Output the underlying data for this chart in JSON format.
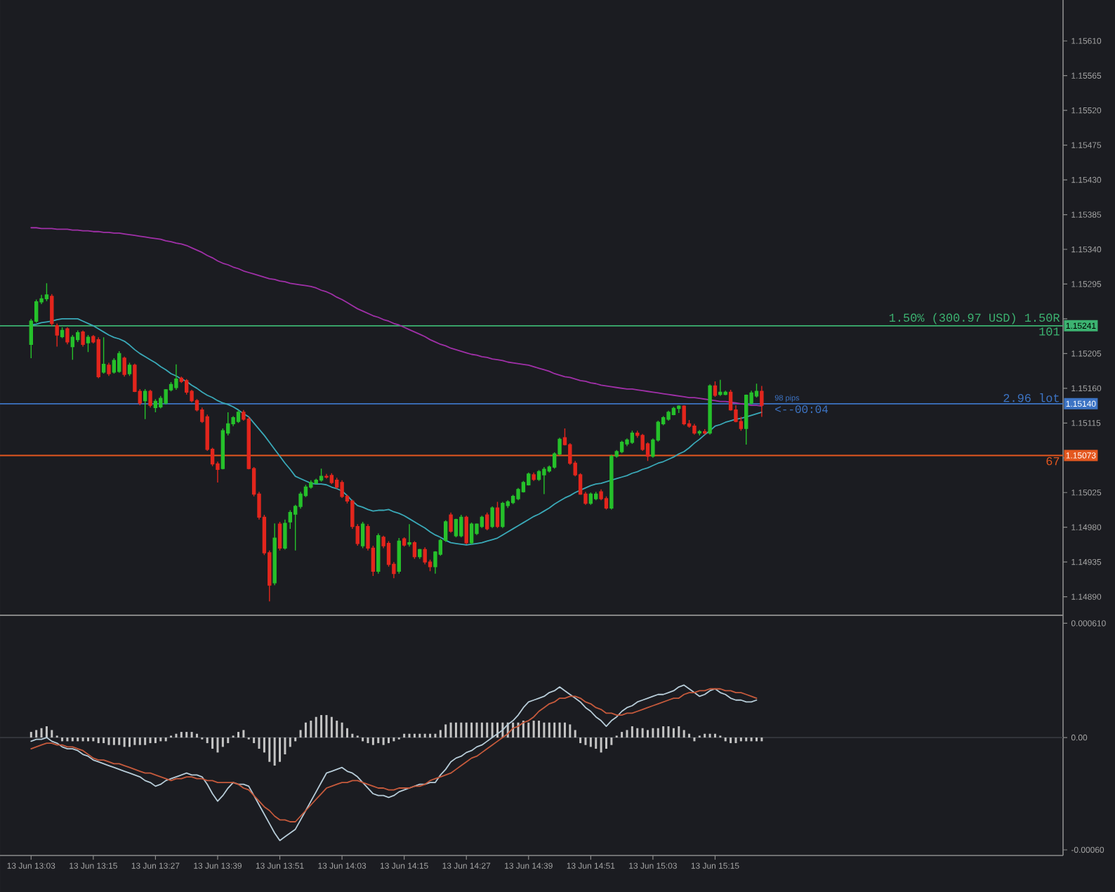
{
  "chart_data": [
    {
      "type": "candlestick",
      "categories": [
        null,
        null,
        null,
        null,
        null,
        null,
        null,
        null,
        null,
        null,
        null,
        null,
        null,
        null,
        null,
        null,
        null,
        null,
        null,
        null,
        null,
        null,
        null,
        null,
        null,
        null,
        null,
        null,
        null,
        null,
        null,
        null,
        null,
        null,
        null,
        null,
        null,
        null,
        null,
        null,
        null,
        null,
        null,
        null,
        null,
        null,
        null,
        null,
        null,
        null,
        null,
        null,
        null,
        null,
        null,
        null,
        null,
        null,
        null,
        null,
        null,
        null,
        null,
        null,
        null,
        null,
        null,
        null,
        null,
        null,
        null,
        null,
        null,
        null,
        null,
        null,
        null,
        null,
        null,
        null,
        null,
        null,
        null,
        null,
        null,
        null,
        null,
        null,
        null,
        null,
        null,
        null,
        null,
        null,
        null,
        null,
        null,
        null,
        null,
        null,
        null,
        null,
        null,
        null,
        null,
        null,
        null,
        null,
        null,
        null,
        null,
        null,
        null,
        null,
        null,
        null,
        null,
        null,
        null,
        null,
        null,
        null,
        null,
        null,
        null,
        null,
        null,
        null,
        null,
        null,
        null,
        null,
        null,
        null,
        null,
        null,
        null,
        null,
        null,
        null,
        null,
        null
      ],
      "tick_labels": "y",
      "ylim": [
        1.14866,
        1.15663
      ],
      "yticks": [
        {
          "value": 1.1489,
          "label": "1.14890"
        },
        {
          "value": 1.14935,
          "label": "1.14935"
        },
        {
          "value": 1.1498,
          "label": "1.14980"
        },
        {
          "value": 1.15025,
          "label": "1.15025"
        },
        {
          "value": 1.1507,
          "label": null
        },
        {
          "value": 1.15115,
          "label": "1.15115"
        },
        {
          "value": 1.1516,
          "label": "1.15160"
        },
        {
          "value": 1.15205,
          "label": "1.15205"
        },
        {
          "value": 1.1525,
          "label": null
        },
        {
          "value": 1.15295,
          "label": "1.15295"
        },
        {
          "value": 1.1534,
          "label": "1.15340"
        },
        {
          "value": 1.15385,
          "label": "1.15385"
        },
        {
          "value": 1.1543,
          "label": "1.15430"
        },
        {
          "value": 1.15475,
          "label": "1.15475"
        },
        {
          "value": 1.1552,
          "label": "1.15520"
        },
        {
          "value": 1.15565,
          "label": "1.15565"
        },
        {
          "value": 1.1561,
          "label": "1.15610"
        }
      ],
      "ohlc": [
        [
          1.15217,
          1.1525,
          1.15199,
          1.15247
        ],
        [
          1.15247,
          1.15275,
          1.15245,
          1.15272
        ],
        [
          1.15272,
          1.15281,
          1.15269,
          1.15276
        ],
        [
          1.15276,
          1.15296,
          1.15273,
          1.15281
        ],
        [
          1.15279,
          1.15282,
          1.15241,
          1.15244
        ],
        [
          1.15241,
          1.15244,
          1.15214,
          1.15229
        ],
        [
          1.15227,
          1.15239,
          1.15225,
          1.15235
        ],
        [
          1.15237,
          1.15239,
          1.15217,
          1.1522
        ],
        [
          1.15214,
          1.15229,
          1.15197,
          1.15226
        ],
        [
          1.15223,
          1.15235,
          1.1522,
          1.15232
        ],
        [
          1.15233,
          1.15235,
          1.15214,
          1.15217
        ],
        [
          1.15219,
          1.15229,
          1.15207,
          1.15226
        ],
        [
          1.15227,
          1.15229,
          1.15218,
          1.1522
        ],
        [
          1.15223,
          1.15226,
          1.15173,
          1.15175
        ],
        [
          1.15181,
          1.15226,
          1.15179,
          1.15191
        ],
        [
          1.1519,
          1.15193,
          1.15176,
          1.15179
        ],
        [
          1.15181,
          1.15199,
          1.15179,
          1.15196
        ],
        [
          1.15182,
          1.15208,
          1.1518,
          1.15205
        ],
        [
          1.15199,
          1.15201,
          1.15175,
          1.15178
        ],
        [
          1.15179,
          1.15193,
          1.15176,
          1.1519
        ],
        [
          1.1519,
          1.15192,
          1.15155,
          1.15156
        ],
        [
          1.15156,
          1.15159,
          1.15138,
          1.15141
        ],
        [
          1.15144,
          1.15159,
          1.1512,
          1.15156
        ],
        [
          1.15156,
          1.15158,
          1.15135,
          1.15138
        ],
        [
          1.15135,
          1.15146,
          1.15129,
          1.15143
        ],
        [
          1.15136,
          1.1515,
          1.15134,
          1.15147
        ],
        [
          1.15141,
          1.15159,
          1.15139,
          1.15158
        ],
        [
          1.15158,
          1.15168,
          1.15156,
          1.15165
        ],
        [
          1.15161,
          1.15191,
          1.15158,
          1.15172
        ],
        [
          1.15173,
          1.15175,
          1.15167,
          1.15169
        ],
        [
          1.1517,
          1.15172,
          1.15152,
          1.15155
        ],
        [
          1.15156,
          1.15158,
          1.15142,
          1.15144
        ],
        [
          1.15144,
          1.15146,
          1.1513,
          1.15132
        ],
        [
          1.15132,
          1.15135,
          1.15115,
          1.15117
        ],
        [
          1.15123,
          1.15126,
          1.15079,
          1.15081
        ],
        [
          1.15081,
          1.15083,
          1.15059,
          1.15062
        ],
        [
          1.15062,
          1.15065,
          1.15038,
          1.15055
        ],
        [
          1.15056,
          1.15108,
          1.15055,
          1.15105
        ],
        [
          1.15102,
          1.15129,
          1.15099,
          1.15114
        ],
        [
          1.15114,
          1.15124,
          1.15111,
          1.15122
        ],
        [
          1.15117,
          1.15132,
          1.15115,
          1.15129
        ],
        [
          1.15129,
          1.15132,
          1.15118,
          1.1512
        ],
        [
          1.1512,
          1.15123,
          1.15055,
          1.15056
        ],
        [
          1.15056,
          1.15058,
          1.1502,
          1.15023
        ],
        [
          1.15023,
          1.15026,
          1.1499,
          1.14993
        ],
        [
          1.14993,
          1.14996,
          1.14944,
          1.14947
        ],
        [
          1.14947,
          1.1495,
          1.14884,
          1.14905
        ],
        [
          1.14908,
          1.14985,
          1.14905,
          1.14966
        ],
        [
          1.14984,
          1.14987,
          1.1495,
          1.14953
        ],
        [
          1.14953,
          1.1499,
          1.14951,
          1.14985
        ],
        [
          1.14987,
          1.15002,
          1.14978,
          1.14999
        ],
        [
          1.14997,
          1.15009,
          1.1495,
          1.15007
        ],
        [
          1.15007,
          1.15026,
          1.15004,
          1.15023
        ],
        [
          1.15021,
          1.15035,
          1.15019,
          1.15032
        ],
        [
          1.15032,
          1.15041,
          1.1503,
          1.15038
        ],
        [
          1.15037,
          1.15043,
          1.15036,
          1.15041
        ],
        [
          1.15041,
          1.15056,
          1.15039,
          1.15046
        ],
        [
          1.15046,
          1.15049,
          1.15043,
          1.15045
        ],
        [
          1.15047,
          1.1505,
          1.15036,
          1.15038
        ],
        [
          1.15041,
          1.15044,
          1.1503,
          1.15032
        ],
        [
          1.15038,
          1.15041,
          1.15018,
          1.1502
        ],
        [
          1.1502,
          1.15022,
          1.15011,
          1.15014
        ],
        [
          1.15014,
          1.15016,
          1.14978,
          1.14981
        ],
        [
          1.14981,
          1.14984,
          1.14956,
          1.14959
        ],
        [
          1.14956,
          1.14987,
          1.14953,
          1.14984
        ],
        [
          1.14981,
          1.14984,
          1.1495,
          1.14953
        ],
        [
          1.14953,
          1.14956,
          1.14917,
          1.14923
        ],
        [
          1.14923,
          1.14972,
          1.1492,
          1.14969
        ],
        [
          1.14967,
          1.14969,
          1.14953,
          1.14956
        ],
        [
          1.14959,
          1.14962,
          1.14929,
          1.14932
        ],
        [
          1.14932,
          1.14935,
          1.14914,
          1.1492
        ],
        [
          1.14923,
          1.14966,
          1.1492,
          1.14962
        ],
        [
          1.14965,
          1.14967,
          1.14955,
          1.14957
        ],
        [
          1.14958,
          1.14984,
          1.14955,
          1.1496
        ],
        [
          1.1496,
          1.14962,
          1.14939,
          1.14942
        ],
        [
          1.14942,
          1.14952,
          1.14939,
          1.14951
        ],
        [
          1.14951,
          1.14954,
          1.14932,
          1.14935
        ],
        [
          1.14935,
          1.14938,
          1.14923,
          1.14929
        ],
        [
          1.14929,
          1.14949,
          1.1492,
          1.14948
        ],
        [
          1.14945,
          1.14965,
          1.14943,
          1.14963
        ],
        [
          1.14963,
          1.14989,
          1.14961,
          1.14987
        ],
        [
          1.14996,
          1.14999,
          1.14973,
          1.14975
        ],
        [
          1.14969,
          1.14991,
          1.14967,
          1.1499
        ],
        [
          1.14969,
          1.14996,
          1.14967,
          1.14993
        ],
        [
          1.14993,
          1.14995,
          1.14958,
          1.1496
        ],
        [
          1.1496,
          1.14986,
          1.14958,
          1.14984
        ],
        [
          1.14972,
          1.14985,
          1.1497,
          1.14984
        ],
        [
          1.14981,
          1.14995,
          1.14979,
          1.14993
        ],
        [
          1.14996,
          1.14999,
          1.14976,
          1.14978
        ],
        [
          1.14981,
          1.15007,
          1.14979,
          1.15005
        ],
        [
          1.15005,
          1.15013,
          1.14979,
          1.14981
        ],
        [
          1.14981,
          1.15013,
          1.14979,
          1.15011
        ],
        [
          1.15008,
          1.15015,
          1.15005,
          1.15013
        ],
        [
          1.15012,
          1.15022,
          1.1501,
          1.1502
        ],
        [
          1.15017,
          1.15031,
          1.15015,
          1.15029
        ],
        [
          1.15026,
          1.1504,
          1.15025,
          1.15038
        ],
        [
          1.15035,
          1.15051,
          1.15034,
          1.15049
        ],
        [
          1.15048,
          1.15051,
          1.1504,
          1.15042
        ],
        [
          1.15042,
          1.15054,
          1.1504,
          1.15052
        ],
        [
          1.15048,
          1.15058,
          1.15023,
          1.15055
        ],
        [
          1.15053,
          1.1506,
          1.15051,
          1.15058
        ],
        [
          1.15058,
          1.15077,
          1.15056,
          1.15075
        ],
        [
          1.15075,
          1.15096,
          1.15073,
          1.15094
        ],
        [
          1.15096,
          1.15108,
          1.15086,
          1.15087
        ],
        [
          1.15087,
          1.15089,
          1.15061,
          1.15063
        ],
        [
          1.15063,
          1.15066,
          1.15046,
          1.15048
        ],
        [
          1.15048,
          1.1505,
          1.15022,
          1.15023
        ],
        [
          1.15023,
          1.15026,
          1.15009,
          1.15011
        ],
        [
          1.15011,
          1.15025,
          1.15009,
          1.15023
        ],
        [
          1.15017,
          1.15026,
          1.15015,
          1.15023
        ],
        [
          1.15026,
          1.15029,
          1.15015,
          1.15017
        ],
        [
          1.15017,
          1.1502,
          1.15003,
          1.15005
        ],
        [
          1.15005,
          1.15074,
          1.15003,
          1.15072
        ],
        [
          1.15072,
          1.1508,
          1.1507,
          1.15078
        ],
        [
          1.15078,
          1.15092,
          1.15076,
          1.1509
        ],
        [
          1.15088,
          1.15095,
          1.15085,
          1.15093
        ],
        [
          1.1509,
          1.15105,
          1.15088,
          1.15102
        ],
        [
          1.15102,
          1.15105,
          1.15096,
          1.15099
        ],
        [
          1.15099,
          1.15101,
          1.15079,
          1.15081
        ],
        [
          1.15088,
          1.1509,
          1.15066,
          1.15072
        ],
        [
          1.15072,
          1.15095,
          1.1507,
          1.15093
        ],
        [
          1.15093,
          1.15118,
          1.15091,
          1.15116
        ],
        [
          1.15114,
          1.15124,
          1.15112,
          1.15122
        ],
        [
          1.1512,
          1.15131,
          1.15118,
          1.15129
        ],
        [
          1.15126,
          1.15136,
          1.15125,
          1.15134
        ],
        [
          1.15134,
          1.15138,
          1.15128,
          1.15137
        ],
        [
          1.15137,
          1.15138,
          1.15112,
          1.15114
        ],
        [
          1.15114,
          1.15119,
          1.15109,
          1.15111
        ],
        [
          1.15111,
          1.15114,
          1.151,
          1.15102
        ],
        [
          1.15102,
          1.15106,
          1.15099,
          1.15104
        ],
        [
          1.15104,
          1.15107,
          1.151,
          1.15102
        ],
        [
          1.15102,
          1.15165,
          1.151,
          1.15163
        ],
        [
          1.15163,
          1.15169,
          1.15149,
          1.15151
        ],
        [
          1.15152,
          1.15171,
          1.1515,
          1.15155
        ],
        [
          1.15152,
          1.15157,
          1.15151,
          1.15155
        ],
        [
          1.15155,
          1.15158,
          1.15131,
          1.15132
        ],
        [
          1.15132,
          1.15138,
          1.15116,
          1.15117
        ],
        [
          1.15117,
          1.15123,
          1.15105,
          1.15108
        ],
        [
          1.15108,
          1.15152,
          1.15087,
          1.15151
        ],
        [
          1.15141,
          1.15157,
          1.15139,
          1.15154
        ],
        [
          1.1515,
          1.15166,
          1.15148,
          1.15156
        ],
        [
          1.15156,
          1.15163,
          1.15123,
          1.15138
        ]
      ],
      "colors": [
        "#26c12b",
        "#26c12b",
        "#26c12b",
        "#26c12b",
        "#e3261d",
        "#e3261d",
        "#26c12b",
        "#e3261d",
        "#26c12b",
        "#26c12b",
        "#e3261d",
        "#26c12b",
        "#e3261d",
        "#e3261d",
        "#26c12b",
        "#e3261d",
        "#26c12b",
        "#26c12b",
        "#e3261d",
        "#26c12b",
        "#e3261d",
        "#e3261d",
        "#26c12b",
        "#e3261d",
        "#26c12b",
        "#26c12b",
        "#26c12b",
        "#26c12b",
        "#26c12b",
        "#e3261d",
        "#e3261d",
        "#e3261d",
        "#e3261d",
        "#e3261d",
        "#e3261d",
        "#e3261d",
        "#e3261d",
        "#26c12b",
        "#26c12b",
        "#26c12b",
        "#26c12b",
        "#e3261d",
        "#e3261d",
        "#e3261d",
        "#e3261d",
        "#e3261d",
        "#e3261d",
        "#26c12b",
        "#e3261d",
        "#26c12b",
        "#26c12b",
        "#26c12b",
        "#26c12b",
        "#26c12b",
        "#26c12b",
        "#26c12b",
        "#26c12b",
        "#e3261d",
        "#e3261d",
        "#e3261d",
        "#e3261d",
        "#e3261d",
        "#e3261d",
        "#e3261d",
        "#26c12b",
        "#e3261d",
        "#e3261d",
        "#26c12b",
        "#e3261d",
        "#e3261d",
        "#e3261d",
        "#26c12b",
        "#e3261d",
        "#26c12b",
        "#e3261d",
        "#26c12b",
        "#e3261d",
        "#e3261d",
        "#26c12b",
        "#26c12b",
        "#26c12b",
        "#e3261d",
        "#26c12b",
        "#26c12b",
        "#e3261d",
        "#26c12b",
        "#26c12b",
        "#26c12b",
        "#e3261d",
        "#26c12b",
        "#e3261d",
        "#26c12b",
        "#26c12b",
        "#26c12b",
        "#26c12b",
        "#26c12b",
        "#26c12b",
        "#e3261d",
        "#26c12b",
        "#26c12b",
        "#26c12b",
        "#26c12b",
        "#26c12b",
        "#e3261d",
        "#e3261d",
        "#e3261d",
        "#e3261d",
        "#e3261d",
        "#26c12b",
        "#26c12b",
        "#e3261d",
        "#e3261d",
        "#26c12b",
        "#26c12b",
        "#26c12b",
        "#26c12b",
        "#26c12b",
        "#e3261d",
        "#e3261d",
        "#e3261d",
        "#26c12b",
        "#26c12b",
        "#26c12b",
        "#26c12b",
        "#26c12b",
        "#26c12b",
        "#e3261d",
        "#e3261d",
        "#e3261d",
        "#26c12b",
        "#e3261d",
        "#26c12b",
        "#e3261d",
        "#26c12b",
        "#26c12b",
        "#e3261d",
        "#e3261d",
        "#e3261d",
        "#26c12b",
        "#26c12b",
        "#26c12b",
        "#e3261d"
      ],
      "series": [
        {
          "type": "line",
          "color": "#3aa9b8",
          "values": [
            1.15242,
            1.15243,
            1.15245,
            1.15246,
            1.15247,
            1.15249,
            1.1525,
            1.1525,
            1.1525,
            1.1525,
            1.15247,
            1.15244,
            1.15241,
            1.15237,
            1.15233,
            1.15229,
            1.15226,
            1.15224,
            1.15221,
            1.15216,
            1.1521,
            1.15205,
            1.15201,
            1.15197,
            1.15193,
            1.15188,
            1.15184,
            1.15179,
            1.15176,
            1.15172,
            1.15169,
            1.15164,
            1.1516,
            1.15155,
            1.15151,
            1.15148,
            1.15144,
            1.15141,
            1.15139,
            1.15136,
            1.15132,
            1.15127,
            1.15123,
            1.15115,
            1.15107,
            1.15099,
            1.1509,
            1.15081,
            1.15072,
            1.15063,
            1.15055,
            1.15046,
            1.15043,
            1.1504,
            1.15037,
            1.15036,
            1.15036,
            1.15035,
            1.15032,
            1.1503,
            1.15027,
            1.15021,
            1.15014,
            1.15008,
            1.15006,
            1.15003,
            1.15001,
            1.15002,
            1.15002,
            1.15003,
            1.15,
            1.14998,
            1.14995,
            1.14991,
            1.14987,
            1.14983,
            1.14979,
            1.14974,
            1.1497,
            1.14967,
            1.14963,
            1.1496,
            1.14959,
            1.14958,
            1.14957,
            1.14958,
            1.14959,
            1.1496,
            1.14962,
            1.14964,
            1.14966,
            1.1497,
            1.14974,
            1.14978,
            1.14982,
            1.14986,
            1.1499,
            1.14994,
            1.14997,
            1.15001,
            1.15005,
            1.1501,
            1.15014,
            1.15018,
            1.15021,
            1.15025,
            1.15028,
            1.15031,
            1.15034,
            1.15036,
            1.15037,
            1.15039,
            1.15041,
            1.15043,
            1.15045,
            1.15047,
            1.1505,
            1.15052,
            1.15055,
            1.15057,
            1.1506,
            1.15063,
            1.15065,
            1.15068,
            1.15071,
            1.15075,
            1.15078,
            1.15083,
            1.15089,
            1.15094,
            1.151,
            1.15105,
            1.15111,
            1.15113,
            1.15116,
            1.15118,
            1.1512,
            1.15121,
            1.15123,
            1.15125,
            1.15127,
            1.15129
          ]
        },
        {
          "type": "line",
          "color": "#a030a8",
          "values": [
            1.15368,
            1.15368,
            1.15367,
            1.15367,
            1.15367,
            1.15366,
            1.15366,
            1.15366,
            1.15365,
            1.15365,
            1.15364,
            1.15364,
            1.15363,
            1.15363,
            1.15362,
            1.15362,
            1.15361,
            1.15361,
            1.1536,
            1.15359,
            1.15358,
            1.15357,
            1.15356,
            1.15355,
            1.15354,
            1.15353,
            1.15351,
            1.1535,
            1.15348,
            1.15347,
            1.15345,
            1.15342,
            1.15339,
            1.15336,
            1.15332,
            1.15329,
            1.15325,
            1.15322,
            1.1532,
            1.15317,
            1.15315,
            1.15312,
            1.1531,
            1.15308,
            1.15306,
            1.15304,
            1.15302,
            1.15301,
            1.15299,
            1.15298,
            1.15296,
            1.15295,
            1.15294,
            1.15293,
            1.15292,
            1.1529,
            1.15287,
            1.15285,
            1.15282,
            1.15278,
            1.15275,
            1.15271,
            1.15267,
            1.15263,
            1.1526,
            1.15257,
            1.15254,
            1.15252,
            1.15249,
            1.15247,
            1.15244,
            1.15242,
            1.15239,
            1.15236,
            1.15233,
            1.1523,
            1.15227,
            1.15223,
            1.1522,
            1.15217,
            1.15215,
            1.15212,
            1.1521,
            1.15208,
            1.15206,
            1.15204,
            1.15203,
            1.15201,
            1.152,
            1.15198,
            1.15197,
            1.15196,
            1.15194,
            1.15193,
            1.15192,
            1.15191,
            1.1519,
            1.15188,
            1.15186,
            1.15184,
            1.15182,
            1.15179,
            1.15177,
            1.15175,
            1.15174,
            1.15172,
            1.1517,
            1.15169,
            1.15167,
            1.15166,
            1.15164,
            1.15163,
            1.15162,
            1.15161,
            1.1516,
            1.15159,
            1.15159,
            1.15158,
            1.15157,
            1.15156,
            1.15155,
            1.15154,
            1.15153,
            1.15152,
            1.15151,
            1.1515,
            1.15149,
            1.15148,
            1.15148,
            1.15147,
            1.15146,
            1.15145,
            1.15144,
            1.15143,
            1.15143,
            1.15142,
            1.15141,
            1.1514,
            1.15139,
            1.15138,
            1.15138,
            1.15137
          ]
        }
      ],
      "ref_lines": [
        {
          "axis": "y",
          "value": 1.15241,
          "label": "1.15241",
          "color": "#3cb371"
        },
        {
          "axis": "y",
          "value": 1.1514,
          "label": "1.15140",
          "color": "#3d74c4"
        },
        {
          "axis": "y",
          "value": 1.15073,
          "label": "1.15073",
          "color": "#e4571f"
        }
      ],
      "annotations": [
        "1.50% (300.97 USD) 1.50R",
        "101",
        "2.96 lot",
        "67",
        "98 pips",
        "<--00:04"
      ]
    },
    {
      "type": "bar",
      "categories": [
        "13 Jun 13:03",
        null,
        null,
        null,
        null,
        null,
        null,
        null,
        null,
        null,
        null,
        null,
        "13 Jun 13:15",
        null,
        null,
        null,
        null,
        null,
        null,
        null,
        null,
        null,
        null,
        null,
        "13 Jun 13:27",
        null,
        null,
        null,
        null,
        null,
        null,
        null,
        null,
        null,
        null,
        null,
        "13 Jun 13:39",
        null,
        null,
        null,
        null,
        null,
        null,
        null,
        null,
        null,
        null,
        null,
        "13 Jun 13:51",
        null,
        null,
        null,
        null,
        null,
        null,
        null,
        null,
        null,
        null,
        null,
        "13 Jun 14:03",
        null,
        null,
        null,
        null,
        null,
        null,
        null,
        null,
        null,
        null,
        null,
        "13 Jun 14:15",
        null,
        null,
        null,
        null,
        null,
        null,
        null,
        null,
        null,
        null,
        null,
        "13 Jun 14:27",
        null,
        null,
        null,
        null,
        null,
        null,
        null,
        null,
        null,
        null,
        null,
        "13 Jun 14:39",
        null,
        null,
        null,
        null,
        null,
        null,
        null,
        null,
        null,
        null,
        null,
        "13 Jun 14:51",
        null,
        null,
        null,
        null,
        null,
        null,
        null,
        null,
        null,
        null,
        null,
        "13 Jun 15:03",
        null,
        null,
        null,
        null,
        null,
        null,
        null,
        null,
        null,
        null,
        null,
        "13 Jun 15:15",
        null,
        null,
        null,
        null,
        null,
        null,
        null,
        null,
        null
      ],
      "ylim": [
        -0.00063,
        0.000653
      ],
      "yticks": [
        {
          "value": 0.00061,
          "label": "0.000610"
        },
        {
          "value": 0,
          "label": "0.00"
        },
        {
          "value": -0.0006,
          "label": "-0.00060"
        }
      ],
      "ref_lines": [
        {
          "axis": "y",
          "value": 0,
          "color": "#36383e"
        }
      ],
      "series": [
        {
          "type": "bar",
          "color": "#c4c4c4",
          "values": [
            3e-05,
            4e-05,
            5e-05,
            6e-05,
            4e-05,
            1e-05,
            -2e-05,
            -2e-05,
            -2e-05,
            -2e-05,
            -2e-05,
            -2e-05,
            -2e-05,
            -3e-05,
            -3e-05,
            -4e-05,
            -4e-05,
            -4e-05,
            -5e-05,
            -5e-05,
            -4e-05,
            -4e-05,
            -4e-05,
            -3e-05,
            -3e-05,
            -2e-05,
            -2e-05,
            1e-05,
            2e-05,
            3e-05,
            3e-05,
            3e-05,
            2e-05,
            -1e-05,
            -3e-05,
            -6e-05,
            -8e-05,
            -5e-05,
            -3e-05,
            1e-05,
            3e-05,
            4e-05,
            -1e-05,
            -3e-05,
            -6e-05,
            -8e-05,
            -0.00013,
            -0.00015,
            -0.00013,
            -9e-05,
            -5e-05,
            -2e-05,
            4e-05,
            8e-05,
            9e-05,
            0.00011,
            0.00012,
            0.00012,
            0.00011,
            9e-05,
            8e-05,
            5e-05,
            2e-05,
            1e-05,
            -2e-05,
            -3e-05,
            -4e-05,
            -3e-05,
            -4e-05,
            -3e-05,
            -2e-05,
            -1e-05,
            2e-05,
            2e-05,
            2e-05,
            2e-05,
            2e-05,
            2e-05,
            2e-05,
            4e-05,
            7e-05,
            8e-05,
            8e-05,
            8e-05,
            8e-05,
            8e-05,
            8e-05,
            8e-05,
            8e-05,
            8e-05,
            8e-05,
            8e-05,
            8e-05,
            8e-05,
            8e-05,
            9e-05,
            8e-05,
            9e-05,
            9e-05,
            8e-05,
            8e-05,
            8e-05,
            8e-05,
            8e-05,
            7e-05,
            4e-05,
            -3e-05,
            -4e-05,
            -5e-05,
            -6e-05,
            -8e-05,
            -6e-05,
            -4e-05,
            1e-05,
            3e-05,
            4e-05,
            6e-05,
            5e-05,
            5e-05,
            4e-05,
            5e-05,
            5e-05,
            6e-05,
            6e-05,
            5e-05,
            6e-05,
            4e-05,
            2e-05,
            -2e-05,
            1e-05,
            2e-05,
            2e-05,
            2e-05,
            1e-05,
            -2e-05,
            -3e-05,
            -3e-05,
            -2e-05,
            -2e-05,
            -2e-05,
            -2e-05,
            -2e-05
          ]
        },
        {
          "type": "line",
          "color": "#b7ccd8",
          "values": [
            -2e-05,
            -1e-05,
            -1e-05,
            0,
            -2e-05,
            -3e-05,
            -5e-05,
            -6e-05,
            -6e-05,
            -7e-05,
            -9e-05,
            -0.0001,
            -0.00012,
            -0.00013,
            -0.00014,
            -0.00015,
            -0.00016,
            -0.00017,
            -0.00018,
            -0.00019,
            -0.0002,
            -0.00021,
            -0.00023,
            -0.00024,
            -0.00026,
            -0.00025,
            -0.00023,
            -0.00022,
            -0.00021,
            -0.0002,
            -0.00019,
            -0.0002,
            -0.0002,
            -0.00021,
            -0.00025,
            -0.0003,
            -0.00034,
            -0.00031,
            -0.00027,
            -0.00024,
            -0.00025,
            -0.00025,
            -0.00026,
            -0.00031,
            -0.00036,
            -0.00041,
            -0.00046,
            -0.00051,
            -0.00055,
            -0.00053,
            -0.00051,
            -0.00049,
            -0.00044,
            -0.00039,
            -0.00034,
            -0.00029,
            -0.00024,
            -0.00019,
            -0.00018,
            -0.00017,
            -0.00016,
            -0.00018,
            -0.00019,
            -0.00021,
            -0.00024,
            -0.00027,
            -0.0003,
            -0.00031,
            -0.00031,
            -0.00032,
            -0.00031,
            -0.00029,
            -0.00028,
            -0.00027,
            -0.00026,
            -0.00025,
            -0.00025,
            -0.00024,
            -0.00024,
            -0.0002,
            -0.00017,
            -0.00013,
            -0.00011,
            -0.0001,
            -8e-05,
            -7e-05,
            -5e-05,
            -4e-05,
            -2e-05,
            0,
            2e-05,
            4e-05,
            7e-05,
            9e-05,
            0.00012,
            0.00016,
            0.00019,
            0.0002,
            0.00021,
            0.00022,
            0.00024,
            0.00025,
            0.00027,
            0.00025,
            0.00023,
            0.00021,
            0.00019,
            0.00016,
            0.00014,
            0.00011,
            9e-05,
            6e-05,
            9e-05,
            0.00011,
            0.00014,
            0.00016,
            0.00017,
            0.00019,
            0.0002,
            0.00021,
            0.00022,
            0.00023,
            0.00023,
            0.00024,
            0.00025,
            0.00027,
            0.00028,
            0.00026,
            0.00024,
            0.00022,
            0.00023,
            0.00025,
            0.00026,
            0.00024,
            0.00023,
            0.00021,
            0.0002,
            0.0002,
            0.00019,
            0.00019,
            0.0002,
            null
          ]
        },
        {
          "type": "line",
          "color": "#c65a3c",
          "values": [
            -6e-05,
            -5e-05,
            -4e-05,
            -3e-05,
            -3e-05,
            -4e-05,
            -4e-05,
            -5e-05,
            -5e-05,
            -6e-05,
            -7e-05,
            -9e-05,
            -0.00011,
            -0.00012,
            -0.00012,
            -0.00013,
            -0.00014,
            -0.00014,
            -0.00015,
            -0.00016,
            -0.00017,
            -0.00018,
            -0.00019,
            -0.00019,
            -0.0002,
            -0.00021,
            -0.00022,
            -0.00023,
            -0.00022,
            -0.00022,
            -0.00021,
            -0.00021,
            -0.00022,
            -0.00022,
            -0.00023,
            -0.00023,
            -0.00024,
            -0.00024,
            -0.00024,
            -0.00024,
            -0.00025,
            -0.00027,
            -0.00028,
            -0.00031,
            -0.00034,
            -0.00037,
            -0.00039,
            -0.00042,
            -0.00044,
            -0.00044,
            -0.00045,
            -0.00045,
            -0.00042,
            -0.00039,
            -0.00036,
            -0.00033,
            -0.0003,
            -0.00027,
            -0.00026,
            -0.00025,
            -0.00024,
            -0.00024,
            -0.00023,
            -0.00023,
            -0.00024,
            -0.00025,
            -0.00026,
            -0.00027,
            -0.00027,
            -0.00028,
            -0.00028,
            -0.00027,
            -0.00027,
            -0.00027,
            -0.00026,
            -0.00026,
            -0.00025,
            -0.00023,
            -0.00022,
            -0.00021,
            -0.0002,
            -0.00019,
            -0.00017,
            -0.00015,
            -0.00013,
            -0.00011,
            -0.0001,
            -8e-05,
            -6e-05,
            -4e-05,
            -2e-05,
            0,
            2e-05,
            5e-05,
            6e-05,
            8e-05,
            9e-05,
            0.00011,
            0.00014,
            0.00016,
            0.00018,
            0.00019,
            0.00021,
            0.00021,
            0.00022,
            0.00022,
            0.00021,
            0.00019,
            0.00018,
            0.00016,
            0.00015,
            0.00013,
            0.00013,
            0.00012,
            0.00012,
            0.00013,
            0.00013,
            0.00014,
            0.00015,
            0.00016,
            0.00017,
            0.00018,
            0.00019,
            0.0002,
            0.00021,
            0.00021,
            0.00023,
            0.00024,
            0.00024,
            0.00025,
            0.00025,
            0.00026,
            0.00026,
            0.00026,
            0.00025,
            0.00025,
            0.00024,
            0.00024,
            0.00023,
            0.00022,
            0.00021,
            null
          ]
        }
      ]
    }
  ]
}
